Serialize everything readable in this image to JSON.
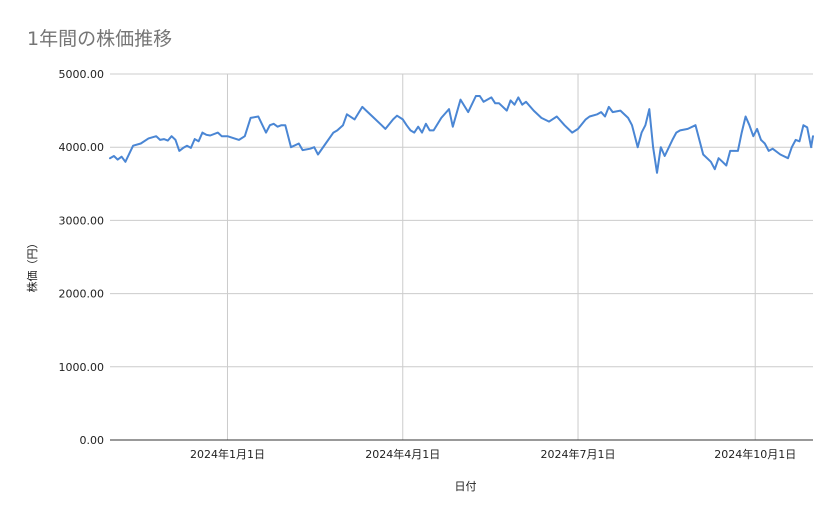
{
  "chart_data": {
    "type": "line",
    "title": "1年間の株価推移",
    "xlabel": "日付",
    "ylabel": "株価（円）",
    "ylim": [
      0,
      5000
    ],
    "yticks": [
      0,
      1000,
      2000,
      3000,
      4000,
      5000
    ],
    "ytick_labels": [
      "0.00",
      "1000.00",
      "2000.00",
      "3000.00",
      "4000.00",
      "5000.00"
    ],
    "xlim": [
      "2023-11-01",
      "2024-10-31"
    ],
    "xticks": [
      "2024-01-01",
      "2024-04-01",
      "2024-07-01",
      "2024-10-01"
    ],
    "xtick_labels": [
      "2024年1月1日",
      "2024年4月1日",
      "2024年7月1日",
      "2024年10月1日"
    ],
    "grid": true,
    "line_color": "#4a86d4",
    "series": [
      {
        "x": [
          "2023-11-01",
          "2023-11-03",
          "2023-11-05",
          "2023-11-07",
          "2023-11-09",
          "2023-11-13",
          "2023-11-17",
          "2023-11-21",
          "2023-11-25",
          "2023-11-27",
          "2023-11-29",
          "2023-12-01",
          "2023-12-03",
          "2023-12-05",
          "2023-12-07",
          "2023-12-09",
          "2023-12-11",
          "2023-12-13",
          "2023-12-15",
          "2023-12-17",
          "2023-12-19",
          "2023-12-21",
          "2023-12-23",
          "2023-12-27",
          "2023-12-29",
          "2024-01-01",
          "2024-01-07",
          "2024-01-10",
          "2024-01-13",
          "2024-01-17",
          "2024-01-21",
          "2024-01-23",
          "2024-01-25",
          "2024-01-27",
          "2024-01-29",
          "2024-01-31",
          "2024-02-03",
          "2024-02-07",
          "2024-02-09",
          "2024-02-13",
          "2024-02-15",
          "2024-02-17",
          "2024-02-21",
          "2024-02-25",
          "2024-02-27",
          "2024-03-01",
          "2024-03-03",
          "2024-03-07",
          "2024-03-11",
          "2024-03-13",
          "2024-03-17",
          "2024-03-21",
          "2024-03-23",
          "2024-03-27",
          "2024-03-29",
          "2024-04-01",
          "2024-04-03",
          "2024-04-05",
          "2024-04-07",
          "2024-04-09",
          "2024-04-11",
          "2024-04-13",
          "2024-04-15",
          "2024-04-17",
          "2024-04-21",
          "2024-04-25",
          "2024-04-27",
          "2024-05-01",
          "2024-05-05",
          "2024-05-09",
          "2024-05-11",
          "2024-05-13",
          "2024-05-17",
          "2024-05-19",
          "2024-05-21",
          "2024-05-25",
          "2024-05-27",
          "2024-05-29",
          "2024-05-31",
          "2024-06-02",
          "2024-06-04",
          "2024-06-08",
          "2024-06-12",
          "2024-06-16",
          "2024-06-20",
          "2024-06-24",
          "2024-06-28",
          "2024-07-01",
          "2024-07-05",
          "2024-07-07",
          "2024-07-11",
          "2024-07-13",
          "2024-07-15",
          "2024-07-17",
          "2024-07-19",
          "2024-07-23",
          "2024-07-27",
          "2024-07-29",
          "2024-08-01",
          "2024-08-03",
          "2024-08-05",
          "2024-08-07",
          "2024-08-09",
          "2024-08-11",
          "2024-08-13",
          "2024-08-15",
          "2024-08-19",
          "2024-08-21",
          "2024-08-23",
          "2024-08-27",
          "2024-08-31",
          "2024-09-04",
          "2024-09-08",
          "2024-09-10",
          "2024-09-12",
          "2024-09-14",
          "2024-09-16",
          "2024-09-18",
          "2024-09-22",
          "2024-09-24",
          "2024-09-26",
          "2024-09-28",
          "2024-09-30",
          "2024-10-02",
          "2024-10-04",
          "2024-10-06",
          "2024-10-08",
          "2024-10-10",
          "2024-10-14",
          "2024-10-18",
          "2024-10-20",
          "2024-10-22",
          "2024-10-24",
          "2024-10-26",
          "2024-10-28",
          "2024-10-30",
          "2024-10-31"
        ],
        "values": [
          3850,
          3880,
          3830,
          3870,
          3800,
          4020,
          4050,
          4120,
          4150,
          4100,
          4110,
          4090,
          4150,
          4100,
          3950,
          3990,
          4020,
          3990,
          4110,
          4080,
          4200,
          4170,
          4160,
          4200,
          4150,
          4150,
          4100,
          4150,
          4400,
          4420,
          4200,
          4300,
          4320,
          4280,
          4300,
          4300,
          4000,
          4050,
          3960,
          3980,
          4000,
          3900,
          4050,
          4200,
          4230,
          4300,
          4450,
          4380,
          4550,
          4500,
          4400,
          4300,
          4250,
          4380,
          4430,
          4380,
          4300,
          4230,
          4200,
          4280,
          4200,
          4320,
          4230,
          4230,
          4400,
          4520,
          4280,
          4650,
          4480,
          4700,
          4700,
          4620,
          4680,
          4600,
          4600,
          4500,
          4640,
          4580,
          4680,
          4580,
          4620,
          4500,
          4400,
          4350,
          4420,
          4300,
          4200,
          4250,
          4380,
          4420,
          4450,
          4480,
          4420,
          4550,
          4480,
          4500,
          4400,
          4300,
          4000,
          4200,
          4300,
          4520,
          4000,
          3650,
          4000,
          3880,
          4100,
          4200,
          4230,
          4250,
          4300,
          3900,
          3800,
          3700,
          3850,
          3800,
          3750,
          3950,
          3950,
          4200,
          4420,
          4300,
          4150,
          4250,
          4100,
          4050,
          3950,
          3980,
          3900,
          3850,
          4000,
          4100,
          4080,
          4300,
          4270,
          4000,
          4150
        ]
      }
    ]
  }
}
